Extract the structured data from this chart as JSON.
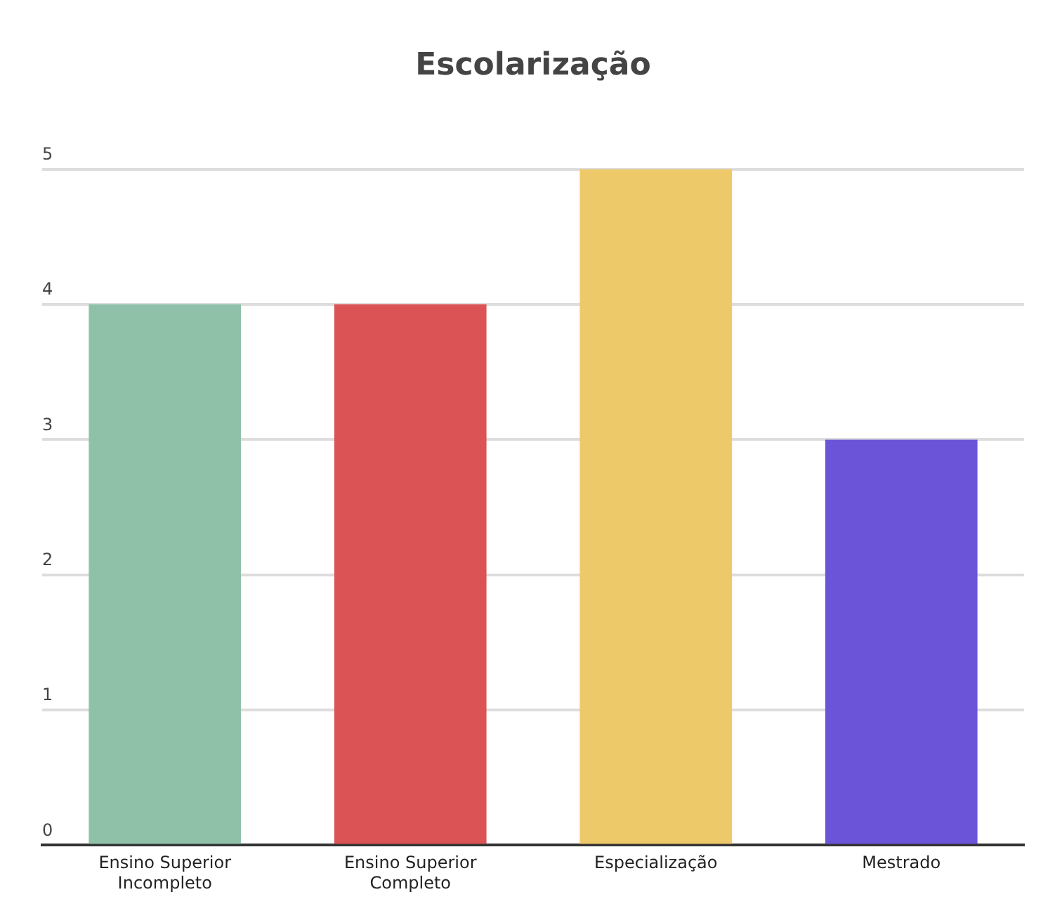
{
  "chart_data": {
    "type": "bar",
    "title": "Escolarização",
    "categories": [
      "Ensino Superior Incompleto",
      "Ensino Superior Completo",
      "Especialização",
      "Mestrado"
    ],
    "values": [
      4,
      4,
      5,
      3
    ],
    "colors": [
      "#8fc1a9",
      "#dc5356",
      "#eec96a",
      "#6c54d9"
    ],
    "ylim": [
      0,
      5
    ],
    "yticks": [
      0,
      1,
      2,
      3,
      4,
      5
    ],
    "grid": "y",
    "legend": false
  }
}
